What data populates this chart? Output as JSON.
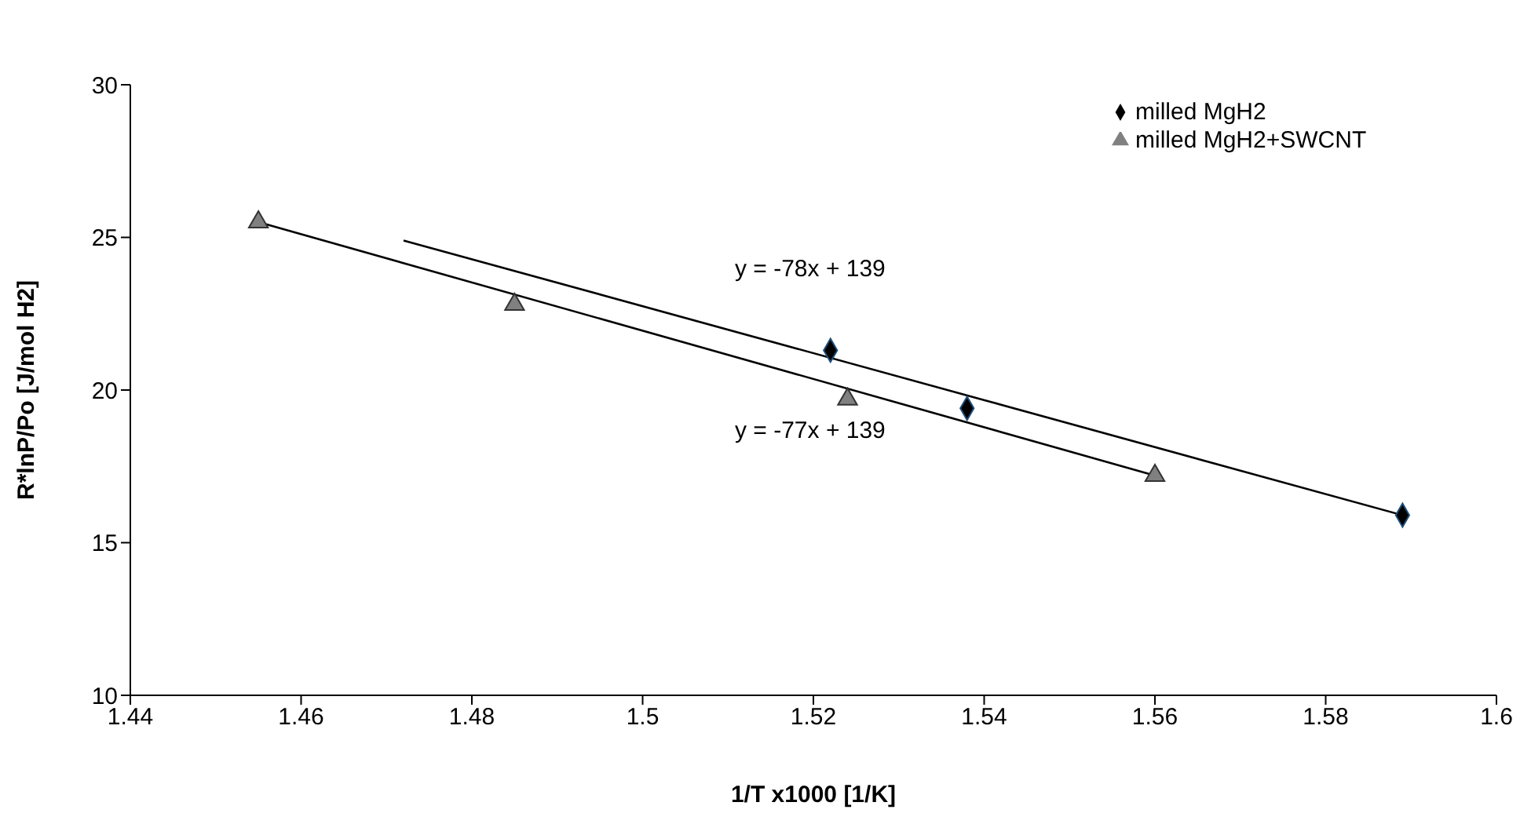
{
  "chart_data": {
    "type": "scatter",
    "xlabel": "1/T x1000 [1/K]",
    "ylabel": "R*lnP/Po [J/mol H2]",
    "xlim": [
      1.44,
      1.6
    ],
    "xticks": [
      {
        "value": 1.44,
        "label": "1.44"
      },
      {
        "value": 1.46,
        "label": "1.46"
      },
      {
        "value": 1.48,
        "label": "1.48"
      },
      {
        "value": 1.5,
        "label": "1.5"
      },
      {
        "value": 1.52,
        "label": "1.52"
      },
      {
        "value": 1.54,
        "label": "1.54"
      },
      {
        "value": 1.56,
        "label": "1.56"
      },
      {
        "value": 1.58,
        "label": "1.58"
      },
      {
        "value": 1.6,
        "label": "1.6"
      }
    ],
    "ylim": [
      10,
      30
    ],
    "yticks": [
      10,
      15,
      20,
      25,
      30
    ],
    "grid": false,
    "legend": "top right",
    "series": [
      {
        "name": "milled MgH2",
        "marker": "diamond",
        "color": "#000000",
        "x": [
          1.522,
          1.538,
          1.589
        ],
        "values": [
          21.3,
          19.4,
          15.9
        ]
      },
      {
        "name": "milled MgH2+SWCNT",
        "marker": "triangle",
        "color": "#808080",
        "x": [
          1.455,
          1.485,
          1.524,
          1.56
        ],
        "values": [
          25.5,
          22.8,
          19.7,
          17.2
        ]
      },
      {
        "type": "line",
        "marker": "none",
        "color": "#000000",
        "x": [
          1.472,
          1.589
        ],
        "values": [
          24.9,
          15.9
        ]
      },
      {
        "type": "line",
        "marker": "none",
        "color": "#000000",
        "x": [
          1.455,
          1.56
        ],
        "values": [
          25.5,
          17.2
        ]
      }
    ],
    "annotations": [
      "y = -78x + 139",
      "y = -77x + 139"
    ]
  }
}
